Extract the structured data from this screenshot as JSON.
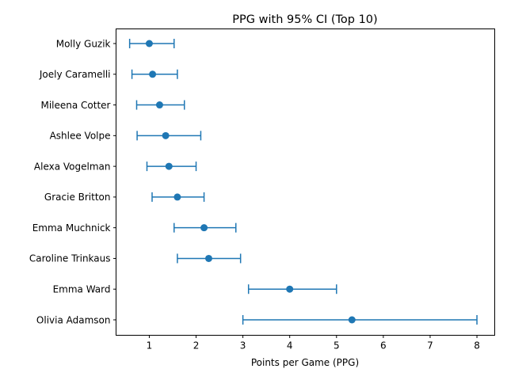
{
  "chart_data": {
    "type": "scatter",
    "title": "PPG with 95% CI (Top 10)",
    "xlabel": "Points per Game (PPG)",
    "ylabel": "",
    "xlim": [
      0.29,
      8.38
    ],
    "xticks": [
      1,
      2,
      3,
      4,
      5,
      6,
      7,
      8
    ],
    "grid": false,
    "color": "#1f77b4",
    "series": [
      {
        "points": [
          {
            "player": "Molly Guzik",
            "ppg": 1.0,
            "ci_low": 0.58,
            "ci_high": 1.53
          },
          {
            "player": "Joely Caramelli",
            "ppg": 1.07,
            "ci_low": 0.63,
            "ci_high": 1.6
          },
          {
            "player": "Mileena Cotter",
            "ppg": 1.22,
            "ci_low": 0.73,
            "ci_high": 1.75
          },
          {
            "player": "Ashlee Volpe",
            "ppg": 1.35,
            "ci_low": 0.74,
            "ci_high": 2.1
          },
          {
            "player": "Alexa Vogelman",
            "ppg": 1.42,
            "ci_low": 0.95,
            "ci_high": 2.0
          },
          {
            "player": "Gracie Britton",
            "ppg": 1.6,
            "ci_low": 1.06,
            "ci_high": 2.17
          },
          {
            "player": "Emma Muchnick",
            "ppg": 2.17,
            "ci_low": 1.53,
            "ci_high": 2.85
          },
          {
            "player": "Caroline Trinkaus",
            "ppg": 2.27,
            "ci_low": 1.6,
            "ci_high": 2.95
          },
          {
            "player": "Emma Ward",
            "ppg": 4.0,
            "ci_low": 3.12,
            "ci_high": 5.0
          },
          {
            "player": "Olivia Adamson",
            "ppg": 5.33,
            "ci_low": 3.0,
            "ci_high": 8.0
          }
        ]
      }
    ]
  }
}
